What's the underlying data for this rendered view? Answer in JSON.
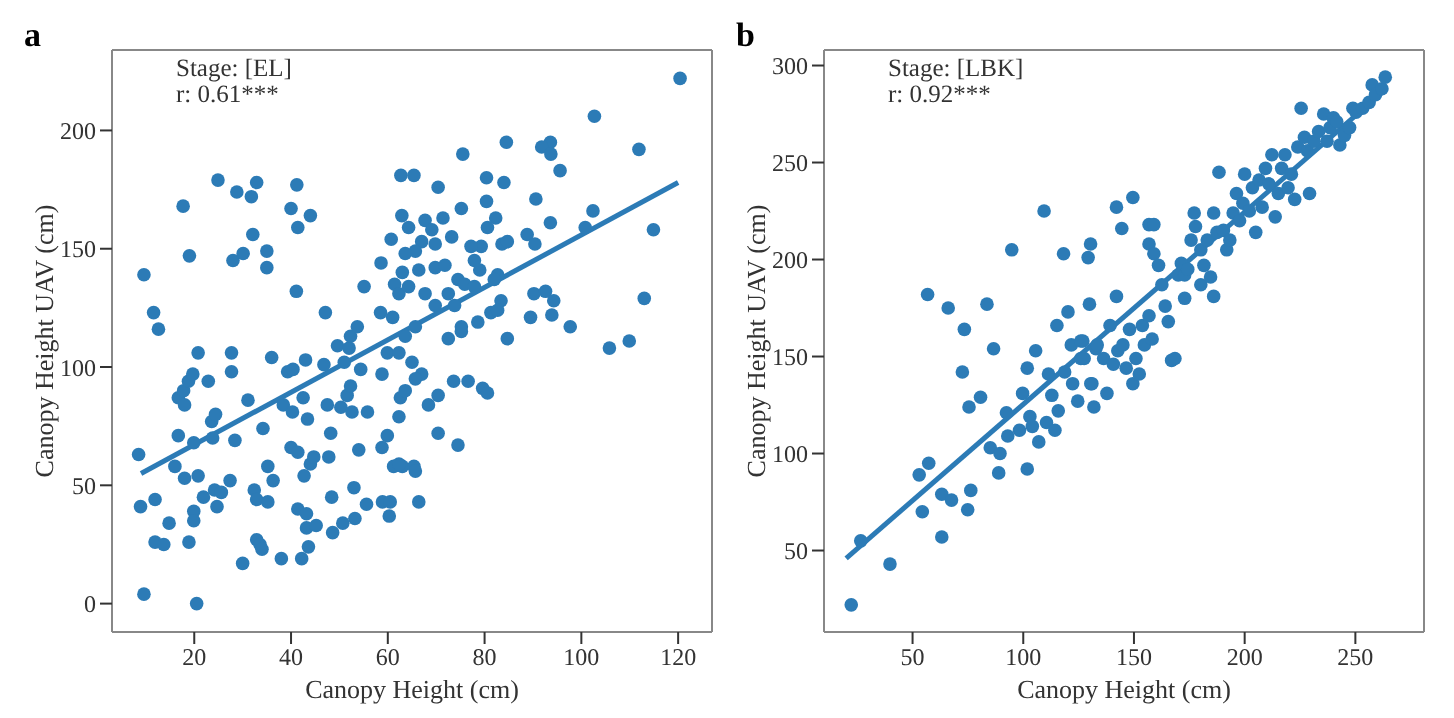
{
  "chart_data": [
    {
      "type": "scatter",
      "title": "a",
      "xlabel": "Canopy Height (cm)",
      "ylabel": "Canopy Height UAV (cm)",
      "annotations": [
        "Stage: [EL]",
        "r: 0.61***"
      ],
      "xlim": [
        3,
        127
      ],
      "ylim": [
        -12,
        234
      ],
      "xticks": [
        20,
        40,
        60,
        80,
        100,
        120
      ],
      "yticks": [
        0,
        50,
        100,
        150,
        200
      ],
      "series": [
        {
          "marker": "circle",
          "color": "#2c7bb6",
          "x": [
            8.5,
            9.6,
            8.9,
            9.6,
            11.6,
            12.6,
            11.9,
            11.9,
            13.7,
            14.8,
            16,
            16.7,
            16.7,
            17.8,
            17.7,
            18,
            18,
            18.8,
            18.9,
            19,
            19.7,
            19.9,
            19.9,
            19.9,
            20.8,
            20.5,
            20.8,
            21.9,
            22.9,
            23.6,
            23.8,
            24.2,
            24.4,
            24.7,
            24.9,
            25.6,
            27.4,
            27.7,
            27.7,
            28,
            28.4,
            28.8,
            30,
            30.1,
            31.1,
            31.8,
            32.1,
            32.4,
            32.9,
            32.9,
            32.9,
            33.6,
            34,
            34.2,
            35,
            35,
            35.2,
            35.2,
            36,
            36.3,
            38,
            38.4,
            39.3,
            40,
            40,
            40.3,
            40.4,
            41.1,
            41.2,
            41.4,
            41.4,
            41.4,
            42.2,
            42.5,
            42.7,
            43,
            43.2,
            43.6,
            44,
            43.4,
            43.2,
            44,
            44.7,
            45.2,
            46.8,
            47.1,
            47.5,
            47.8,
            48.2,
            48.4,
            48.6,
            49.6,
            50.3,
            50.7,
            51,
            51.6,
            52,
            52.3,
            52.3,
            52.6,
            53,
            53.2,
            53.7,
            54,
            54.4,
            55.1,
            55.6,
            55.8,
            58.5,
            58.6,
            58.8,
            58.8,
            58.9,
            59.9,
            60.3,
            60.5,
            59.9,
            60.7,
            61,
            61.2,
            61.4,
            62.6,
            63,
            62.7,
            65.4,
            70.4,
            75.5,
            84.5,
            93.6,
            91.8,
            93.7,
            95.6,
            102.7,
            111.9,
            120.4,
            62.9,
            64.3,
            67.7,
            69.1,
            71.4,
            75.2,
            80.4,
            80.4,
            84,
            82.3,
            80.6,
            83.6,
            79.3,
            77.2,
            73.2,
            69.8,
            67,
            65.7,
            63.6,
            63,
            66.4,
            69.8,
            71.8,
            74.5,
            77.9,
            79,
            82.7,
            84.7,
            88.8,
            90.4,
            90.6,
            93.6,
            102.4,
            100.8,
            114.9,
            90.2,
            92.6,
            94.3,
            89.5,
            93.9,
            97.7,
            113,
            105.8,
            109.9,
            62.3,
            64.3,
            67.7,
            69.8,
            72.5,
            73.8,
            75.9,
            77.9,
            82,
            83.4,
            81.3,
            78.6,
            75.2,
            72.5,
            63.6,
            65.7,
            62.3,
            65,
            67,
            65.7,
            63.6,
            68.4,
            70.4,
            73.6,
            76.6,
            79.6,
            80.6,
            62.3,
            70.4,
            74.5,
            62.3,
            65.4,
            65.7,
            66.4,
            84.7,
            82.7,
            75.2
          ],
          "values": [
            63,
            139,
            41,
            4,
            123,
            116,
            44,
            26,
            25,
            34,
            58,
            71,
            87,
            90,
            168,
            84,
            53,
            94,
            26,
            147,
            97,
            68,
            39,
            35,
            106,
            0,
            54,
            45,
            94,
            77,
            70,
            48,
            80,
            41,
            179,
            47,
            52,
            106,
            98,
            145,
            69,
            174,
            17,
            148,
            86,
            172,
            156,
            48,
            44,
            178,
            27,
            25,
            23,
            74,
            149,
            142,
            58,
            43,
            104,
            52,
            19,
            84,
            98,
            167,
            66,
            81,
            99,
            132,
            177,
            159,
            64,
            40,
            19,
            87,
            54,
            103,
            32,
            24,
            164,
            78,
            38,
            59,
            62,
            33,
            101,
            123,
            84,
            62,
            72,
            45,
            30,
            109,
            83,
            34,
            102,
            88,
            108,
            113,
            92,
            81,
            49,
            36,
            117,
            65,
            99,
            134,
            42,
            81,
            123,
            144,
            97,
            66,
            43,
            106,
            37,
            43,
            71,
            154,
            121,
            58,
            135,
            87,
            58,
            181,
            181,
            176,
            190,
            195,
            195,
            193,
            190,
            183,
            206,
            192,
            222,
            164,
            159,
            162,
            158,
            163,
            167,
            180,
            170,
            178,
            163,
            159,
            152,
            151,
            151,
            155,
            152,
            153,
            149,
            148,
            140,
            141,
            142,
            143,
            137,
            145,
            141,
            139,
            153,
            156,
            152,
            171,
            161,
            166,
            159,
            158,
            131,
            132,
            128,
            121,
            122,
            117,
            129,
            108,
            111,
            131,
            134,
            131,
            126,
            131,
            126,
            135,
            134,
            137,
            128,
            123,
            119,
            115,
            112,
            113,
            117,
            106,
            102,
            97,
            95,
            90,
            84,
            88,
            94,
            94,
            91,
            89,
            79,
            72,
            67,
            59,
            58,
            56,
            43,
            112,
            124,
            117
          ]
        },
        {
          "type": "line",
          "color": "#2c7bb6",
          "x": [
            9,
            120
          ],
          "values": [
            55,
            178
          ]
        }
      ]
    },
    {
      "type": "scatter",
      "title": "b",
      "xlabel": "Canopy Height (cm)",
      "ylabel": "Canopy Height UAV (cm)",
      "annotations": [
        "Stage: [LBK]",
        "r: 0.92***"
      ],
      "xlim": [
        10,
        281
      ],
      "ylim": [
        8,
        308
      ],
      "xticks": [
        50,
        100,
        150,
        200,
        250
      ],
      "yticks": [
        50,
        100,
        150,
        200,
        250,
        300
      ],
      "series": [
        {
          "marker": "circle",
          "color": "#2c7bb6",
          "x": [
            22.3,
            26.6,
            39.8,
            53,
            54.4,
            57.3,
            56.8,
            63.2,
            63.2,
            67.6,
            66.1,
            73.4,
            72.5,
            75.5,
            74.9,
            76.3,
            80.7,
            83.6,
            85.1,
            86.6,
            89.5,
            88.9,
            92.4,
            93,
            94.8,
            98.3,
            99.7,
            101.8,
            101.8,
            103,
            104.1,
            105.6,
            107,
            109.4,
            110.5,
            111.4,
            112.9,
            114.3,
            115.2,
            115.8,
            118.2,
            118.7,
            120.2,
            121.7,
            122.3,
            124.6,
            126,
            126.9,
            129.3,
            130.4,
            129.9,
            131,
            132.8,
            131.9,
            126,
            127.5,
            130.5,
            133.4,
            136.3,
            137.8,
            139.2,
            140.7,
            142.1,
            142.7,
            145,
            146.5,
            148,
            149.5,
            150.9,
            152.4,
            153.8,
            154.7,
            156.8,
            158.2,
            142.1,
            144.5,
            149.5,
            156.8,
            159,
            156.8,
            159,
            161.1,
            162.6,
            164.1,
            165.5,
            167,
            168.5,
            170,
            171.4,
            172.9,
            172.9,
            174.3,
            175.8,
            177.2,
            177.8,
            180.2,
            180.2,
            181.6,
            183.1,
            184.6,
            186,
            186,
            187.5,
            188.4,
            190.4,
            191.9,
            193.3,
            194.8,
            196.3,
            197.7,
            199.2,
            200,
            202.1,
            203.5,
            205,
            206.5,
            207.9,
            209.4,
            210.9,
            212.3,
            213.8,
            215.2,
            216.7,
            218.2,
            219.6,
            221.1,
            222.6,
            225.5,
            224,
            227,
            228.4,
            229.3,
            231.3,
            233.4,
            235.7,
            237.2,
            238.6,
            240.1,
            241.6,
            243,
            245.1,
            247.4,
            248.9,
            250.3,
            253.3,
            256.2,
            257.6,
            259.1,
            262,
            263.5
          ],
          "values": [
            22,
            55,
            43,
            89,
            70,
            95,
            182,
            57,
            79,
            76,
            175,
            164,
            142,
            124,
            71,
            81,
            129,
            177,
            103,
            154,
            100,
            90,
            121,
            109,
            205,
            112,
            131,
            144,
            92,
            119,
            114,
            153,
            106,
            225,
            116,
            141,
            130,
            112,
            166,
            122,
            203,
            142,
            173,
            156,
            136,
            127,
            149,
            158,
            201,
            208,
            177,
            136,
            154,
            124,
            158,
            149,
            136,
            156,
            149,
            131,
            166,
            146,
            181,
            153,
            156,
            144,
            164,
            136,
            149,
            141,
            166,
            156,
            171,
            159,
            227,
            216,
            232,
            218,
            218,
            208,
            203,
            197,
            187,
            176,
            168,
            148,
            149,
            192,
            198,
            192,
            180,
            195,
            210,
            224,
            217,
            205,
            187,
            197,
            210,
            191,
            181,
            224,
            214,
            245,
            215,
            205,
            210,
            224,
            234,
            220,
            229,
            244,
            225,
            237,
            214,
            241,
            227,
            247,
            239,
            254,
            222,
            234,
            247,
            254,
            237,
            244,
            231,
            278,
            258,
            263,
            256,
            234,
            261,
            266,
            275,
            261,
            268,
            273,
            271,
            259,
            264,
            268,
            278,
            276,
            278,
            281,
            290,
            285,
            288,
            294
          ]
        },
        {
          "type": "line",
          "color": "#2c7bb6",
          "x": [
            20,
            262
          ],
          "values": [
            46,
            286
          ]
        }
      ]
    }
  ]
}
